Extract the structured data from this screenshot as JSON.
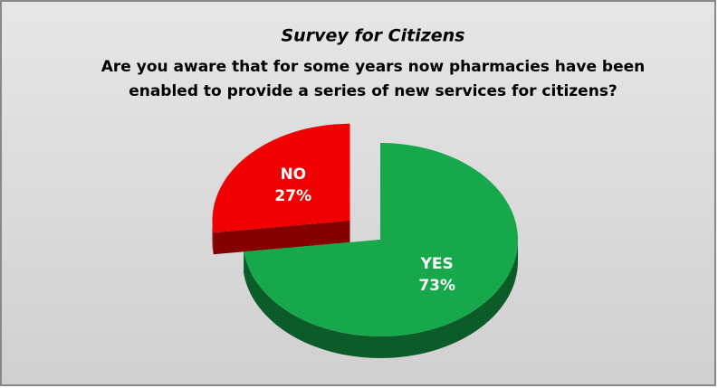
{
  "chart_data": {
    "type": "pie",
    "title": "Survey for Citizens",
    "subtitle": [
      "Are you aware that for some years now pharmacies have been",
      "enabled to provide a series of new services for citizens?"
    ],
    "categories": [
      "YES",
      "NO"
    ],
    "values": [
      73,
      27
    ],
    "value_labels": [
      "73%",
      "27%"
    ],
    "colors": [
      "#16a84a",
      "#f00000"
    ]
  }
}
